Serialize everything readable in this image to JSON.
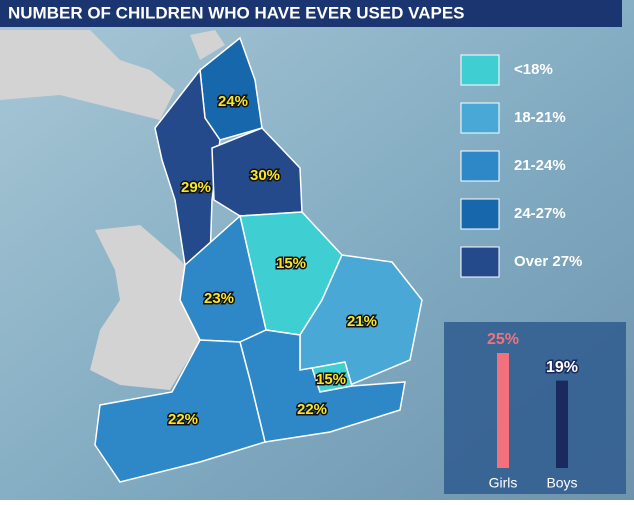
{
  "header": {
    "title": "NUMBER OF CHILDREN WHO HAVE EVER USED VAPES"
  },
  "legend": [
    {
      "label": "<18%",
      "color": "#3fcfd3"
    },
    {
      "label": "18-21%",
      "color": "#4aa8d6"
    },
    {
      "label": "21-24%",
      "color": "#2e88c8"
    },
    {
      "label": "24-27%",
      "color": "#1767ad"
    },
    {
      "label": "Over 27%",
      "color": "#244a8c"
    }
  ],
  "regions": [
    {
      "label": "24%",
      "color": "#1767ad"
    },
    {
      "label": "29%",
      "color": "#244a8c"
    },
    {
      "label": "30%",
      "color": "#244a8c"
    },
    {
      "label": "15%",
      "color": "#3fcfd3"
    },
    {
      "label": "23%",
      "color": "#2e88c8"
    },
    {
      "label": "21%",
      "color": "#4aa8d6"
    },
    {
      "label": "15%",
      "color": "#3fcfd3"
    },
    {
      "label": "22%",
      "color": "#2e88c8"
    },
    {
      "label": "22%",
      "color": "#2e88c8"
    }
  ],
  "chart_data": {
    "type": "bar",
    "categories": [
      "Girls",
      "Boys"
    ],
    "series": [
      {
        "colors": [
          "#f2717d",
          "#1b2a5e"
        ],
        "label_colors": [
          "#f2717d",
          "#ffffff"
        ],
        "values": [
          25,
          19
        ],
        "value_labels": [
          "25%",
          "19%"
        ]
      }
    ]
  }
}
